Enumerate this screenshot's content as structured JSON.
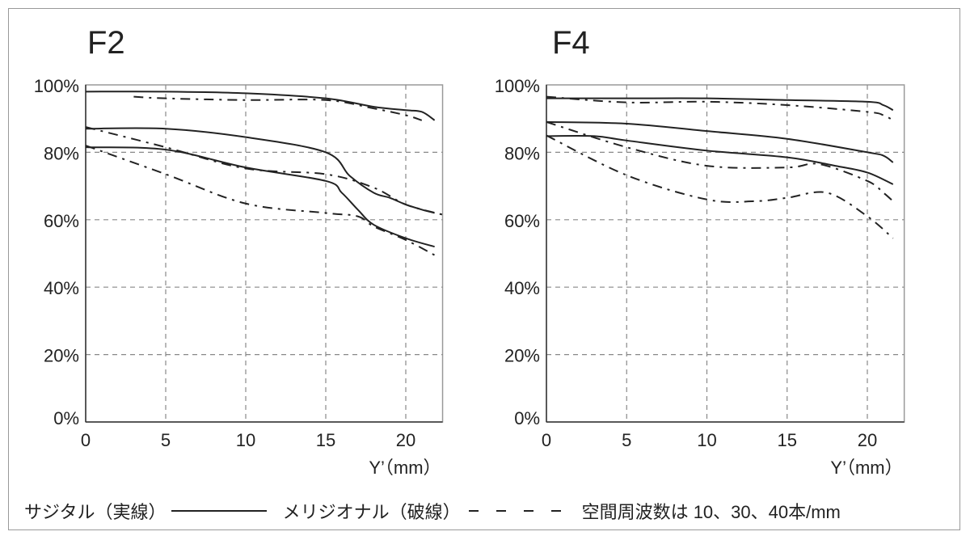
{
  "chart_data": [
    {
      "type": "line",
      "title": "F2",
      "xlabel": "Y’（mm）",
      "ylabel": "",
      "xlim": [
        0,
        22.3
      ],
      "ylim": [
        0,
        100
      ],
      "xticks": [
        "0",
        "5",
        "10",
        "15",
        "20"
      ],
      "yticks": [
        "0%",
        "20%",
        "40%",
        "60%",
        "80%",
        "100%"
      ],
      "grid": true,
      "series": [
        {
          "style": "solid",
          "x": [
            0,
            5,
            10,
            15,
            18,
            20,
            21,
            21.8
          ],
          "y": [
            98,
            98,
            97.5,
            96,
            93.5,
            92.5,
            92,
            89.5
          ]
        },
        {
          "style": "dashdot",
          "x": [
            3,
            5,
            10,
            15,
            18,
            20,
            21
          ],
          "y": [
            96.5,
            96,
            95.5,
            95.5,
            93,
            91,
            89.5
          ]
        },
        {
          "style": "solid",
          "x": [
            0,
            5,
            10,
            15,
            16.5,
            18,
            19,
            20,
            21,
            21.8
          ],
          "y": [
            87,
            87,
            84.5,
            80,
            73,
            68,
            66.5,
            64.5,
            63,
            62
          ]
        },
        {
          "style": "dashdot",
          "x": [
            0,
            5,
            10,
            15,
            18,
            20,
            22.3
          ],
          "y": [
            87.5,
            81.5,
            75.2,
            73.5,
            69.5,
            64.5,
            61.5
          ]
        },
        {
          "style": "solid",
          "x": [
            0,
            5,
            10,
            15,
            16,
            17,
            18,
            20,
            21.8
          ],
          "y": [
            81.5,
            80.8,
            75.5,
            71.5,
            68,
            63,
            58.5,
            54.5,
            52
          ]
        },
        {
          "style": "dashdot",
          "x": [
            0,
            5,
            10,
            15,
            17,
            18,
            20,
            21.8
          ],
          "y": [
            82,
            73.5,
            64.8,
            62,
            61,
            58,
            54,
            49.5
          ]
        }
      ]
    },
    {
      "type": "line",
      "title": "F4",
      "xlabel": "Y’（mm）",
      "ylabel": "",
      "xlim": [
        0,
        22.3
      ],
      "ylim": [
        0,
        100
      ],
      "xticks": [
        "0",
        "5",
        "10",
        "15",
        "20"
      ],
      "yticks": [
        "0%",
        "20%",
        "40%",
        "60%",
        "80%",
        "100%"
      ],
      "grid": true,
      "series": [
        {
          "style": "solid",
          "x": [
            0,
            5,
            10,
            15,
            20,
            21,
            21.6
          ],
          "y": [
            96,
            96,
            96,
            95.5,
            95,
            94,
            92.5
          ]
        },
        {
          "style": "dashdot",
          "x": [
            0,
            5,
            10,
            15,
            20,
            21,
            21.6
          ],
          "y": [
            96.5,
            94.8,
            95,
            94,
            92,
            91,
            89.5
          ]
        },
        {
          "style": "solid",
          "x": [
            0,
            5,
            10,
            15,
            20,
            21,
            21.6
          ],
          "y": [
            89,
            88.5,
            86.3,
            84,
            80,
            79,
            77
          ]
        },
        {
          "style": "dashdot",
          "x": [
            0,
            5,
            10,
            15,
            17,
            20,
            21,
            21.6
          ],
          "y": [
            89,
            81.5,
            76,
            75.5,
            76.5,
            71.5,
            68,
            65.5
          ]
        },
        {
          "style": "solid",
          "x": [
            0,
            3,
            5,
            10,
            15,
            18,
            20,
            21.6
          ],
          "y": [
            84.8,
            84.8,
            83.5,
            80.5,
            78.5,
            76,
            74,
            70.5
          ]
        },
        {
          "style": "dashdot",
          "x": [
            0,
            5,
            10,
            13,
            15,
            17.5,
            20,
            21.6
          ],
          "y": [
            85,
            73.2,
            66,
            65.5,
            66.5,
            68,
            61,
            54.5
          ]
        }
      ]
    }
  ],
  "legend": {
    "sagittal": "サジタル（実線）",
    "meridional": "メリジオナル（破線）",
    "frequency": "空間周波数は 10、30、40本/mm"
  },
  "colors": {
    "line": "#222222",
    "grid": "#888888"
  }
}
